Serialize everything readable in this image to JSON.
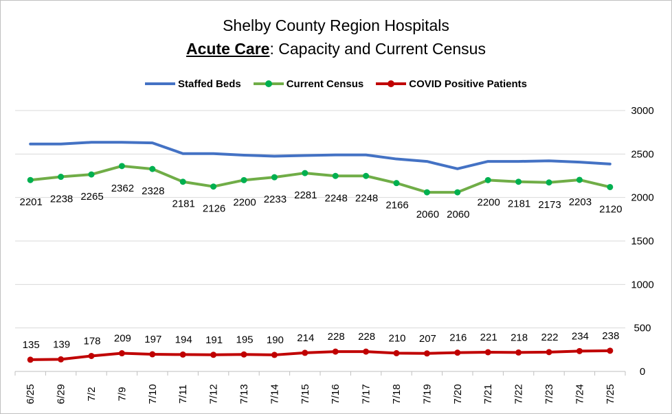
{
  "chart_data": {
    "type": "line",
    "title": "Shelby County Region Hospitals",
    "subtitle_bold": "Acute Care",
    "subtitle_rest": ": Capacity and Current Census",
    "categories": [
      "6/25",
      "6/29",
      "7/2",
      "7/9",
      "7/10",
      "7/11",
      "7/12",
      "7/13",
      "7/14",
      "7/15",
      "7/16",
      "7/17",
      "7/18",
      "7/19",
      "7/20",
      "7/21",
      "7/22",
      "7/23",
      "7/24",
      "7/25"
    ],
    "ylim": [
      0,
      3000
    ],
    "yticks": [
      0,
      500,
      1000,
      1500,
      2000,
      2500,
      3000
    ],
    "grid": true,
    "legend_position": "top",
    "series": [
      {
        "name": "Staffed Beds",
        "color": "#4472C4",
        "markers": false,
        "labels": false,
        "values": [
          2615,
          2615,
          2635,
          2635,
          2628,
          2505,
          2505,
          2487,
          2475,
          2483,
          2490,
          2490,
          2443,
          2415,
          2330,
          2415,
          2415,
          2422,
          2407,
          2385
        ]
      },
      {
        "name": "Current Census",
        "color": "#70AD47",
        "marker_color": "#00B050",
        "markers": true,
        "labels": true,
        "values": [
          2201,
          2238,
          2265,
          2362,
          2328,
          2181,
          2126,
          2200,
          2233,
          2281,
          2248,
          2248,
          2166,
          2060,
          2060,
          2200,
          2181,
          2173,
          2203,
          2120
        ]
      },
      {
        "name": "COVID Positive Patients",
        "color": "#C00000",
        "marker_color": "#C00000",
        "markers": true,
        "labels": true,
        "values": [
          135,
          139,
          178,
          209,
          197,
          194,
          191,
          195,
          190,
          214,
          228,
          228,
          210,
          207,
          216,
          221,
          218,
          222,
          234,
          238
        ]
      }
    ]
  }
}
